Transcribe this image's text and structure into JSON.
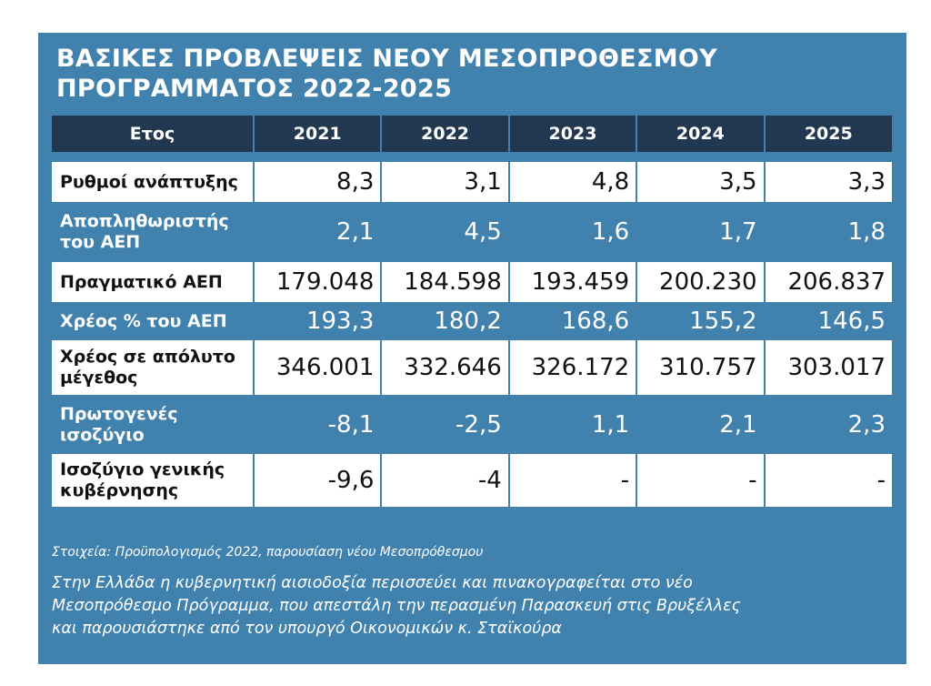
{
  "title_line1": "ΒΑΣΙΚΕΣ ΠΡΟΒΛΕΨΕΙΣ ΝΕΟΥ ΜΕΣΟΠΡΟΘΕΣΜΟΥ",
  "title_line2": "ΠΡΟΓΡΑΜΜΑΤΟΣ 2022-2025",
  "table": {
    "headers": [
      "Ετος",
      "2021",
      "2022",
      "2023",
      "2024",
      "2025"
    ],
    "rows": [
      {
        "label": "Ρυθμοί ανάπτυξης",
        "values": [
          "8,3",
          "3,1",
          "4,8",
          "3,5",
          "3,3"
        ]
      },
      {
        "label": "Αποπληθωριστής του ΑΕΠ",
        "values": [
          "2,1",
          "4,5",
          "1,6",
          "1,7",
          "1,8"
        ]
      },
      {
        "label": "Πραγματικό ΑΕΠ",
        "values": [
          "179.048",
          "184.598",
          "193.459",
          "200.230",
          "206.837"
        ]
      },
      {
        "label": "Χρέος % του ΑΕΠ",
        "values": [
          "193,3",
          "180,2",
          "168,6",
          "155,2",
          "146,5"
        ]
      },
      {
        "label": "Χρέος σε απόλυτο μέγεθος",
        "values": [
          "346.001",
          "332.646",
          "326.172",
          "310.757",
          "303.017"
        ]
      },
      {
        "label": "Πρωτογενές ισοζύγιο",
        "values": [
          "-8,1",
          "-2,5",
          "1,1",
          "2,1",
          "2,3"
        ]
      },
      {
        "label": "Ισοζύγιο γενικής κυβέρνησης",
        "values": [
          "-9,6",
          "-4",
          "-",
          "-",
          "-"
        ]
      }
    ]
  },
  "source": "Στοιχεία: Προϋπολογισμός 2022, παρουσίαση νέου Μεσοπρόθεσμου",
  "caption_line1": "Στην Ελλάδα η κυβερνητική αισιοδοξία περισσεύει και πινακογραφείται στο νέο",
  "caption_line2": "Μεσοπρόθεσμο Πρόγραμμα, που απεστάλη την περασμένη Παρασκευή στις Βρυξέλλες",
  "caption_line3": "και παρουσιάστηκε από τον υπουργό Οικονομικών κ. Σταϊκούρα"
}
